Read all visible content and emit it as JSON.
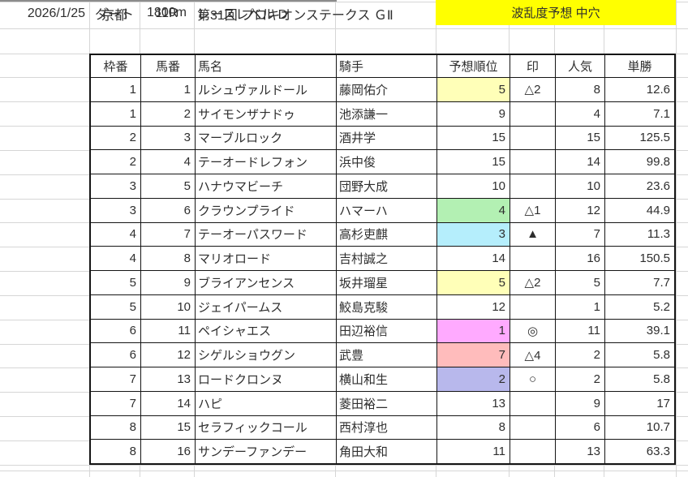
{
  "header": {
    "date": "2026/1/25",
    "venue": "京都",
    "race_number": "11R",
    "race_title": "第31回 プロキオンステークス ＧⅡ",
    "surface": "ダート",
    "distance": "1800m",
    "race_level": "レースレベル D",
    "banner": {
      "text": "波乱度予想 中穴",
      "bg": "#ffff00"
    }
  },
  "table": {
    "columns": [
      "枠番",
      "馬番",
      "馬名",
      "騎手",
      "予想順位",
      "印",
      "人気",
      "単勝"
    ],
    "rows": [
      {
        "waku": "1",
        "uma": "1",
        "name": "ルシュヴァルドール",
        "jockey": "藤岡佑介",
        "rank": "5",
        "rank_bg": "#ffffb8",
        "mark": "△2",
        "pop": "8",
        "odds": "12.6"
      },
      {
        "waku": "1",
        "uma": "2",
        "name": "サイモンザナドゥ",
        "jockey": "池添謙一",
        "rank": "9",
        "rank_bg": "",
        "mark": "",
        "pop": "4",
        "odds": "7.1"
      },
      {
        "waku": "2",
        "uma": "3",
        "name": "マーブルロック",
        "jockey": "酒井学",
        "rank": "15",
        "rank_bg": "",
        "mark": "",
        "pop": "15",
        "odds": "125.5"
      },
      {
        "waku": "2",
        "uma": "4",
        "name": "テーオードレフォン",
        "jockey": "浜中俊",
        "rank": "15",
        "rank_bg": "",
        "mark": "",
        "pop": "14",
        "odds": "99.8"
      },
      {
        "waku": "3",
        "uma": "5",
        "name": "ハナウマビーチ",
        "jockey": "団野大成",
        "rank": "10",
        "rank_bg": "",
        "mark": "",
        "pop": "10",
        "odds": "23.6"
      },
      {
        "waku": "3",
        "uma": "6",
        "name": "クラウンプライド",
        "jockey": "ハマーハ",
        "rank": "4",
        "rank_bg": "#b3f0b3",
        "mark": "△1",
        "pop": "12",
        "odds": "44.9"
      },
      {
        "waku": "4",
        "uma": "7",
        "name": "テーオーパスワード",
        "jockey": "高杉吏麒",
        "rank": "3",
        "rank_bg": "#b5eefc",
        "mark": "▲",
        "pop": "7",
        "odds": "11.3"
      },
      {
        "waku": "4",
        "uma": "8",
        "name": "マリオロード",
        "jockey": "吉村誠之",
        "rank": "14",
        "rank_bg": "",
        "mark": "",
        "pop": "16",
        "odds": "150.5"
      },
      {
        "waku": "5",
        "uma": "9",
        "name": "ブライアンセンス",
        "jockey": "坂井瑠星",
        "rank": "5",
        "rank_bg": "#ffffb8",
        "mark": "△2",
        "pop": "5",
        "odds": "7.7"
      },
      {
        "waku": "5",
        "uma": "10",
        "name": "ジェイパームス",
        "jockey": "鮫島克駿",
        "rank": "12",
        "rank_bg": "",
        "mark": "",
        "pop": "1",
        "odds": "5.2"
      },
      {
        "waku": "6",
        "uma": "11",
        "name": "ペイシャエス",
        "jockey": "田辺裕信",
        "rank": "1",
        "rank_bg": "#ffaaff",
        "mark": "◎",
        "pop": "11",
        "odds": "39.1"
      },
      {
        "waku": "6",
        "uma": "12",
        "name": "シゲルショウグン",
        "jockey": "武豊",
        "rank": "7",
        "rank_bg": "#ffbcbc",
        "mark": "△4",
        "pop": "2",
        "odds": "5.8"
      },
      {
        "waku": "7",
        "uma": "13",
        "name": "ロードクロンヌ",
        "jockey": "横山和生",
        "rank": "2",
        "rank_bg": "#b8b8ec",
        "mark": "○",
        "pop": "2",
        "odds": "5.8"
      },
      {
        "waku": "7",
        "uma": "14",
        "name": "ハピ",
        "jockey": "菱田裕二",
        "rank": "13",
        "rank_bg": "",
        "mark": "",
        "pop": "9",
        "odds": "17"
      },
      {
        "waku": "8",
        "uma": "15",
        "name": "セラフィックコール",
        "jockey": "西村淳也",
        "rank": "8",
        "rank_bg": "",
        "mark": "",
        "pop": "6",
        "odds": "10.7"
      },
      {
        "waku": "8",
        "uma": "16",
        "name": "サンデーファンデー",
        "jockey": "角田大和",
        "rank": "11",
        "rank_bg": "",
        "mark": "",
        "pop": "13",
        "odds": "63.3"
      }
    ]
  }
}
